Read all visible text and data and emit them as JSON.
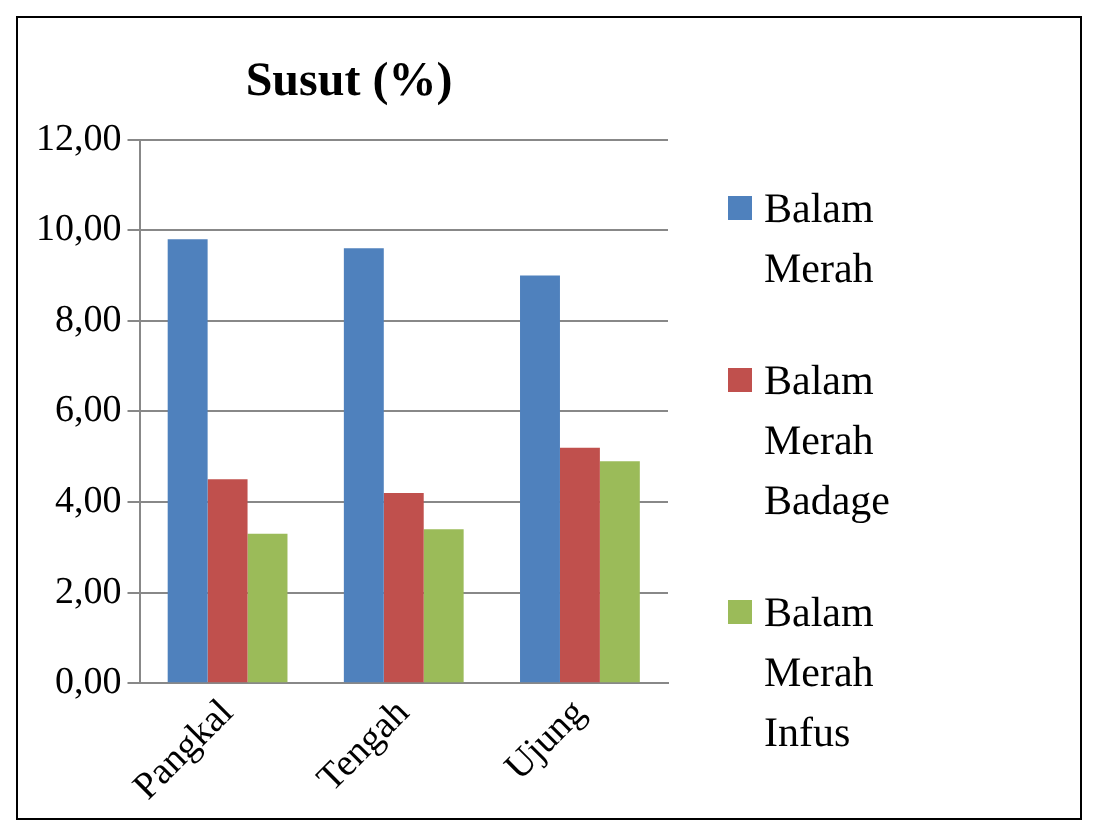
{
  "chart_data": {
    "type": "bar",
    "title": "Susut (%)",
    "categories": [
      "Pangkal",
      "Tengah",
      "Ujung"
    ],
    "series": [
      {
        "name": "Balam Merah",
        "color": "#4f81bd",
        "values": [
          9.8,
          9.6,
          9.0
        ]
      },
      {
        "name": "Balam Merah Badage",
        "color": "#c0504d",
        "values": [
          4.5,
          4.2,
          5.2
        ]
      },
      {
        "name": "Balam Merah Infus",
        "color": "#9bbb59",
        "values": [
          3.3,
          3.4,
          4.9
        ]
      }
    ],
    "ylim": [
      0,
      12
    ],
    "yticks": [
      {
        "value": 0,
        "label": "0,00"
      },
      {
        "value": 2,
        "label": "2,00"
      },
      {
        "value": 4,
        "label": "4,00"
      },
      {
        "value": 6,
        "label": "6,00"
      },
      {
        "value": 8,
        "label": "8,00"
      },
      {
        "value": 10,
        "label": "10,00"
      },
      {
        "value": 12,
        "label": "12,00"
      }
    ],
    "grid": "y",
    "legend": "right"
  }
}
